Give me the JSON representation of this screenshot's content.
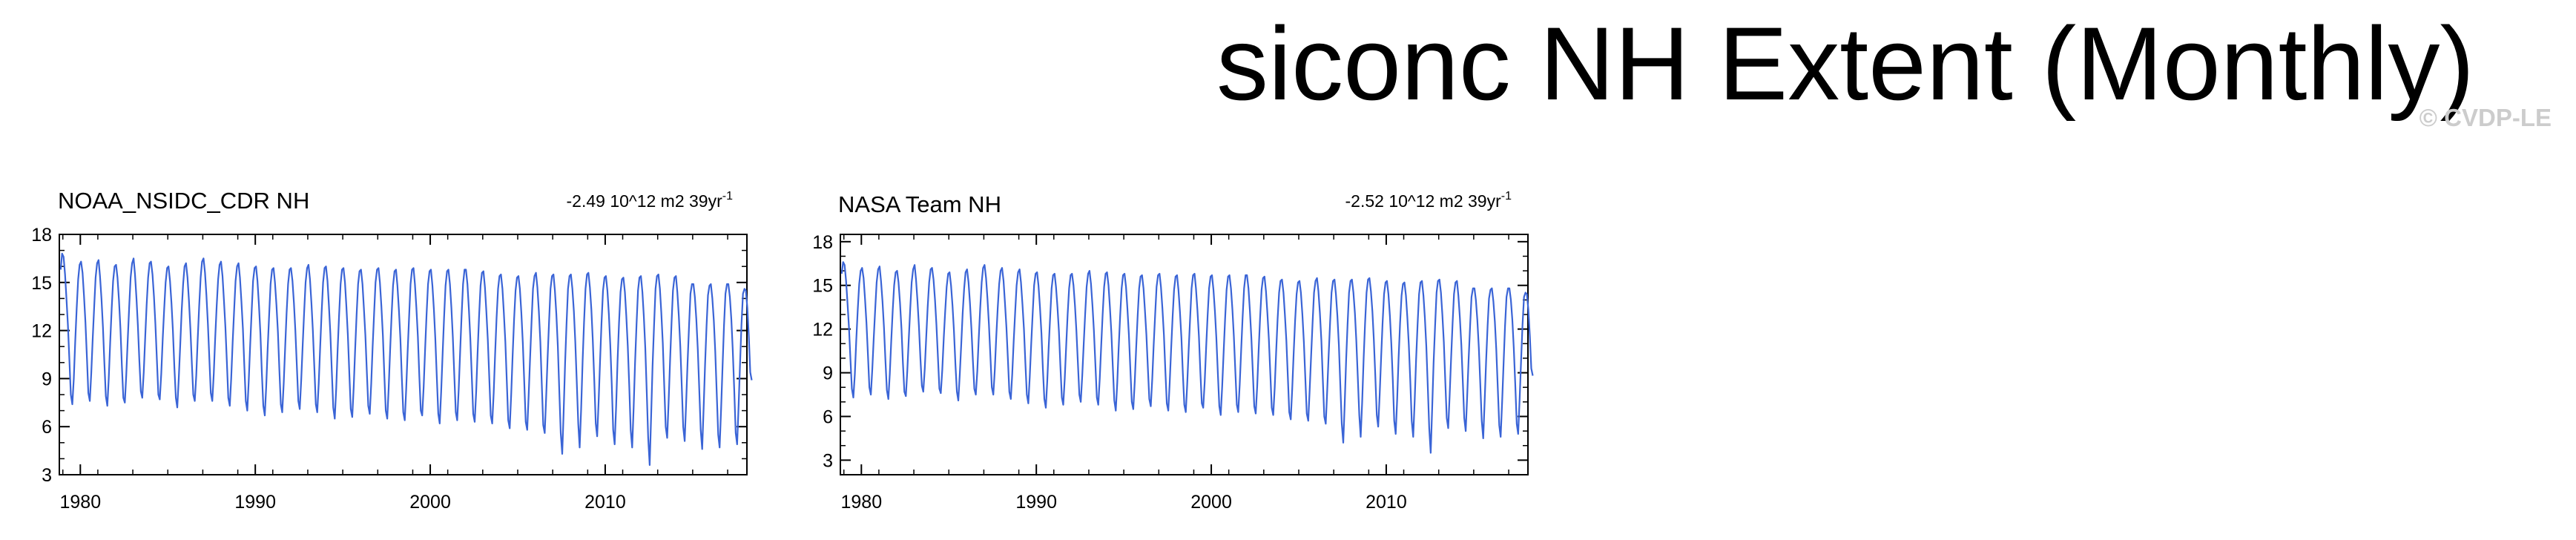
{
  "title": "siconc NH Extent (Monthly)",
  "watermark": "© CVDP-LE",
  "series_color": "#3a64d6",
  "chart_data": [
    {
      "type": "line",
      "title": "NOAA_NSIDC_CDR NH",
      "trend": "-2.49 10^12 m2 39yr",
      "trend_sup": "-1",
      "xlim": [
        1978.8,
        2018.1
      ],
      "ylim": [
        3,
        18
      ],
      "xticks": [
        "1980",
        "1990",
        "2000",
        "2010"
      ],
      "yticks": [
        "3",
        "6",
        "9",
        "12",
        "15",
        "18"
      ],
      "x_start": 1978.875,
      "x_step": 0.0833333,
      "values": [
        15.8,
        16.8,
        16.6,
        15.5,
        14.0,
        12.3,
        10.1,
        8.0,
        7.4,
        9.0,
        11.3,
        13.4,
        15.2,
        16.1,
        16.3,
        15.6,
        14.2,
        12.5,
        10.3,
        8.1,
        7.6,
        9.3,
        11.5,
        13.5,
        15.3,
        16.2,
        16.4,
        15.4,
        14.0,
        12.2,
        10.0,
        7.9,
        7.3,
        9.0,
        11.3,
        13.4,
        15.1,
        16.0,
        16.1,
        15.3,
        13.9,
        12.1,
        9.8,
        7.8,
        7.5,
        9.2,
        11.4,
        13.5,
        15.3,
        16.2,
        16.5,
        15.5,
        14.0,
        12.3,
        10.1,
        8.2,
        7.8,
        9.4,
        11.6,
        13.6,
        15.3,
        16.2,
        16.3,
        15.5,
        14.1,
        12.4,
        10.2,
        8.0,
        7.7,
        9.3,
        11.5,
        13.3,
        15.0,
        15.9,
        16.0,
        15.1,
        13.7,
        12.0,
        9.7,
        7.8,
        7.2,
        9.0,
        11.1,
        13.2,
        14.9,
        16.0,
        16.2,
        15.3,
        13.9,
        12.1,
        9.9,
        8.0,
        7.6,
        9.2,
        11.4,
        13.5,
        15.3,
        16.3,
        16.5,
        15.6,
        14.2,
        12.4,
        10.2,
        8.1,
        7.6,
        9.3,
        11.5,
        13.5,
        15.2,
        16.1,
        16.3,
        15.4,
        13.9,
        12.2,
        10.0,
        7.8,
        7.3,
        9.0,
        11.3,
        13.3,
        15.1,
        16.0,
        16.2,
        15.3,
        13.8,
        12.1,
        9.8,
        7.6,
        7.0,
        8.8,
        11.1,
        13.2,
        15.1,
        15.9,
        16.0,
        15.1,
        13.6,
        11.8,
        9.4,
        7.3,
        6.7,
        8.5,
        10.9,
        13.0,
        14.9,
        15.8,
        15.9,
        15.0,
        13.6,
        11.9,
        9.6,
        7.4,
        6.9,
        8.7,
        11.0,
        13.1,
        14.9,
        15.8,
        15.9,
        15.1,
        13.7,
        12.0,
        9.8,
        7.6,
        7.1,
        8.9,
        11.1,
        13.1,
        15.0,
        15.9,
        16.1,
        15.2,
        13.7,
        12.0,
        9.7,
        7.4,
        6.9,
        8.7,
        11.0,
        13.1,
        15.0,
        15.9,
        16.0,
        15.1,
        13.6,
        11.8,
        9.4,
        7.2,
        6.5,
        8.4,
        10.8,
        13.0,
        14.9,
        15.8,
        15.9,
        15.0,
        13.5,
        11.7,
        9.3,
        7.1,
        6.6,
        8.5,
        10.8,
        13.0,
        14.9,
        15.7,
        15.8,
        14.9,
        13.4,
        11.7,
        9.4,
        7.3,
        6.8,
        8.7,
        11.0,
        13.1,
        15.0,
        15.8,
        15.9,
        15.0,
        13.5,
        11.7,
        9.3,
        7.0,
        6.5,
        8.4,
        10.8,
        13.0,
        14.8,
        15.7,
        15.8,
        14.8,
        13.3,
        11.5,
        9.1,
        6.9,
        6.4,
        8.3,
        10.7,
        12.9,
        14.9,
        15.8,
        15.9,
        14.9,
        13.4,
        11.6,
        9.2,
        7.0,
        6.7,
        8.5,
        10.9,
        13.0,
        14.9,
        15.7,
        15.8,
        14.8,
        13.3,
        11.5,
        9.1,
        6.8,
        6.2,
        8.2,
        10.6,
        12.8,
        14.8,
        15.7,
        15.8,
        14.9,
        13.4,
        11.6,
        9.2,
        6.9,
        6.4,
        8.3,
        10.7,
        12.9,
        14.9,
        15.8,
        15.8,
        14.9,
        13.3,
        11.5,
        9.1,
        6.8,
        6.3,
        8.2,
        10.6,
        12.9,
        14.8,
        15.6,
        15.7,
        14.7,
        13.2,
        11.4,
        9.0,
        6.7,
        6.2,
        8.1,
        10.5,
        12.8,
        14.6,
        15.4,
        15.5,
        14.6,
        13.1,
        11.3,
        8.8,
        6.4,
        5.9,
        8.0,
        10.4,
        12.7,
        14.5,
        15.3,
        15.4,
        14.6,
        13.1,
        11.2,
        8.8,
        6.3,
        5.8,
        7.9,
        10.3,
        12.6,
        14.6,
        15.4,
        15.6,
        14.7,
        13.2,
        11.3,
        8.7,
        6.1,
        5.6,
        7.8,
        10.3,
        12.6,
        14.6,
        15.4,
        15.5,
        14.5,
        13.0,
        11.0,
        8.3,
        5.6,
        4.3,
        6.9,
        10.0,
        12.4,
        14.6,
        15.4,
        15.5,
        14.6,
        13.2,
        11.3,
        8.8,
        6.2,
        4.7,
        7.1,
        10.1,
        12.5,
        14.6,
        15.5,
        15.6,
        14.7,
        13.3,
        11.4,
        8.9,
        6.2,
        5.4,
        7.6,
        10.2,
        12.5,
        14.5,
        15.3,
        15.4,
        14.5,
        13.0,
        11.1,
        8.6,
        5.8,
        4.9,
        7.3,
        10.1,
        12.5,
        14.4,
        15.2,
        15.3,
        14.4,
        12.9,
        11.0,
        8.5,
        5.8,
        4.7,
        7.2,
        10.0,
        12.4,
        14.5,
        15.3,
        15.4,
        14.4,
        12.9,
        10.9,
        8.1,
        5.3,
        3.6,
        6.7,
        9.8,
        12.3,
        14.6,
        15.4,
        15.5,
        14.6,
        13.1,
        11.2,
        8.6,
        6.0,
        5.3,
        7.5,
        10.1,
        12.5,
        14.5,
        15.3,
        15.4,
        14.4,
        12.9,
        11.0,
        8.6,
        6.0,
        5.1,
        7.4,
        10.0,
        12.3,
        14.3,
        14.9,
        14.9,
        14.1,
        12.7,
        10.8,
        8.4,
        5.8,
        4.6,
        7.1,
        9.9,
        12.3,
        14.2,
        14.8,
        14.9,
        14.0,
        12.6,
        10.7,
        8.1,
        5.5,
        4.7,
        7.1,
        9.8,
        12.3,
        14.3,
        14.9,
        14.9,
        14.1,
        12.7,
        10.8,
        8.3,
        5.6,
        4.9,
        7.3,
        10.0,
        12.4,
        14.3,
        14.6,
        14.5,
        13.4,
        11.6,
        9.4,
        8.9
      ]
    },
    {
      "type": "line",
      "title": "NASA Team NH",
      "trend": "-2.52 10^12 m2 39yr",
      "trend_sup": "-1",
      "xlim": [
        1978.8,
        2018.1
      ],
      "ylim": [
        2,
        18.5
      ],
      "xticks": [
        "1980",
        "1990",
        "2000",
        "2010"
      ],
      "yticks": [
        "3",
        "6",
        "9",
        "12",
        "15",
        "18"
      ],
      "x_start": 1978.875,
      "x_step": 0.0833333,
      "values": [
        15.8,
        16.6,
        16.4,
        15.3,
        13.8,
        12.1,
        9.9,
        7.9,
        7.3,
        8.9,
        11.2,
        13.3,
        15.1,
        16.0,
        16.2,
        15.5,
        14.1,
        12.4,
        10.2,
        8.0,
        7.5,
        9.2,
        11.4,
        13.4,
        15.2,
        16.1,
        16.3,
        15.3,
        13.9,
        12.1,
        9.9,
        7.8,
        7.2,
        8.9,
        11.2,
        13.3,
        15.0,
        15.9,
        16.0,
        15.2,
        13.8,
        12.0,
        9.7,
        7.7,
        7.4,
        9.1,
        11.3,
        13.4,
        15.2,
        16.1,
        16.4,
        15.4,
        13.9,
        12.2,
        10.0,
        8.1,
        7.7,
        9.3,
        11.5,
        13.5,
        15.2,
        16.1,
        16.2,
        15.4,
        14.0,
        12.3,
        10.1,
        7.9,
        7.6,
        9.2,
        11.4,
        13.2,
        14.9,
        15.8,
        15.9,
        15.0,
        13.6,
        11.9,
        9.6,
        7.7,
        7.1,
        8.9,
        11.0,
        13.1,
        14.8,
        15.9,
        16.1,
        15.2,
        13.8,
        12.0,
        9.8,
        7.9,
        7.5,
        9.1,
        11.3,
        13.4,
        15.2,
        16.2,
        16.4,
        15.5,
        14.1,
        12.3,
        10.1,
        8.0,
        7.5,
        9.2,
        11.4,
        13.4,
        15.1,
        16.0,
        16.2,
        15.3,
        13.8,
        12.1,
        9.9,
        7.7,
        7.2,
        8.9,
        11.2,
        13.2,
        15.0,
        15.9,
        16.1,
        15.2,
        13.7,
        12.0,
        9.7,
        7.5,
        6.9,
        8.7,
        11.0,
        13.1,
        15.0,
        15.8,
        15.9,
        15.0,
        13.5,
        11.7,
        9.3,
        7.2,
        6.6,
        8.4,
        10.8,
        12.9,
        14.8,
        15.7,
        15.8,
        14.9,
        13.5,
        11.8,
        9.5,
        7.3,
        6.8,
        8.6,
        10.9,
        13.0,
        14.8,
        15.7,
        15.8,
        15.0,
        13.6,
        11.9,
        9.7,
        7.5,
        7.0,
        8.8,
        11.0,
        13.0,
        14.9,
        15.8,
        16.0,
        15.1,
        13.6,
        11.9,
        9.6,
        7.3,
        6.8,
        8.6,
        10.9,
        13.0,
        14.9,
        15.8,
        15.9,
        15.0,
        13.5,
        11.7,
        9.3,
        7.1,
        6.4,
        8.3,
        10.7,
        12.9,
        14.8,
        15.7,
        15.8,
        14.9,
        13.4,
        11.6,
        9.2,
        7.0,
        6.5,
        8.4,
        10.7,
        12.9,
        14.8,
        15.6,
        15.7,
        14.8,
        13.3,
        11.6,
        9.3,
        7.2,
        6.7,
        8.6,
        10.9,
        13.0,
        14.9,
        15.7,
        15.8,
        14.9,
        13.4,
        11.6,
        9.2,
        6.9,
        6.4,
        8.3,
        10.7,
        12.9,
        14.7,
        15.6,
        15.7,
        14.7,
        13.2,
        11.4,
        9.0,
        6.8,
        6.3,
        8.2,
        10.6,
        12.8,
        14.8,
        15.7,
        15.8,
        14.8,
        13.3,
        11.5,
        9.1,
        6.9,
        6.6,
        8.4,
        10.8,
        12.9,
        14.8,
        15.6,
        15.7,
        14.7,
        13.2,
        11.4,
        9.0,
        6.7,
        6.1,
        8.1,
        10.5,
        12.7,
        14.7,
        15.6,
        15.7,
        14.8,
        13.3,
        11.5,
        9.1,
        6.8,
        6.3,
        8.2,
        10.6,
        12.8,
        14.8,
        15.7,
        15.7,
        14.8,
        13.2,
        11.4,
        9.0,
        6.7,
        6.2,
        8.1,
        10.5,
        12.8,
        14.7,
        15.5,
        15.6,
        14.6,
        13.1,
        11.3,
        8.9,
        6.6,
        6.1,
        8.0,
        10.4,
        12.7,
        14.5,
        15.3,
        15.4,
        14.5,
        13.0,
        11.2,
        8.7,
        6.3,
        5.8,
        7.9,
        10.3,
        12.6,
        14.4,
        15.2,
        15.3,
        14.5,
        13.0,
        11.1,
        8.7,
        6.2,
        5.7,
        7.8,
        10.2,
        12.5,
        14.5,
        15.3,
        15.5,
        14.6,
        13.1,
        11.2,
        8.6,
        6.0,
        5.5,
        7.7,
        10.2,
        12.5,
        14.5,
        15.3,
        15.4,
        14.4,
        12.9,
        10.9,
        8.2,
        5.5,
        4.2,
        6.8,
        9.9,
        12.3,
        14.5,
        15.3,
        15.4,
        14.5,
        13.1,
        11.2,
        8.7,
        6.1,
        4.6,
        7.0,
        10.0,
        12.4,
        14.5,
        15.4,
        15.5,
        14.6,
        13.2,
        11.3,
        8.8,
        6.1,
        5.3,
        7.5,
        10.1,
        12.4,
        14.4,
        15.2,
        15.3,
        14.4,
        12.9,
        11.0,
        8.5,
        5.7,
        4.8,
        7.2,
        10.0,
        12.4,
        14.3,
        15.1,
        15.2,
        14.3,
        12.8,
        10.9,
        8.4,
        5.7,
        4.6,
        7.1,
        9.9,
        12.3,
        14.4,
        15.2,
        15.3,
        14.3,
        12.8,
        10.8,
        8.0,
        5.2,
        3.5,
        6.6,
        9.7,
        12.2,
        14.5,
        15.3,
        15.4,
        14.5,
        13.0,
        11.1,
        8.5,
        5.9,
        5.2,
        7.4,
        10.0,
        12.4,
        14.4,
        15.2,
        15.3,
        14.3,
        12.8,
        10.9,
        8.5,
        5.9,
        5.0,
        7.3,
        9.9,
        12.2,
        14.2,
        14.8,
        14.8,
        14.0,
        12.6,
        10.7,
        8.3,
        5.7,
        4.5,
        7.0,
        9.8,
        12.2,
        14.1,
        14.7,
        14.8,
        13.9,
        12.5,
        10.6,
        8.0,
        5.4,
        4.6,
        7.0,
        9.7,
        12.2,
        14.2,
        14.8,
        14.8,
        14.0,
        12.6,
        10.7,
        8.2,
        5.5,
        4.8,
        7.2,
        9.9,
        12.3,
        14.2,
        14.5,
        14.4,
        13.3,
        11.5,
        9.3,
        8.8
      ]
    }
  ]
}
